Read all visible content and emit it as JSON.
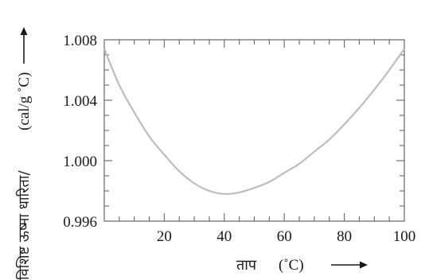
{
  "chart_data": {
    "type": "line",
    "title": "",
    "xlabel": "ताप",
    "xunit": "(˚C)",
    "ylabel": "विशिष्ट ऊष्मा धारिता/",
    "yunit": "(cal/g ˚C)",
    "xlim": [
      0,
      100
    ],
    "ylim": [
      0.996,
      1.008
    ],
    "x_ticks": [
      20,
      40,
      60,
      80,
      100
    ],
    "x_tick_labels": [
      "20",
      "40",
      "60",
      "80",
      "100"
    ],
    "y_ticks": [
      0.996,
      1.0,
      1.004,
      1.008
    ],
    "y_tick_labels": [
      "0.996",
      "1.000",
      "1.004",
      "1.008"
    ],
    "grid": false,
    "line_color": "#bdbdbd",
    "series": [
      {
        "x": [
          0,
          5,
          10,
          15,
          20,
          25,
          30,
          35,
          40,
          45,
          50,
          55,
          60,
          65,
          70,
          75,
          80,
          85,
          90,
          95,
          100
        ],
        "values": [
          1.0074,
          1.005,
          1.0032,
          1.0016,
          1.0004,
          0.9993,
          0.9985,
          0.998,
          0.9978,
          0.9979,
          0.9982,
          0.9986,
          0.9992,
          0.9998,
          1.0006,
          1.0014,
          1.0024,
          1.0035,
          1.0047,
          1.006,
          1.0074
        ]
      }
    ]
  }
}
